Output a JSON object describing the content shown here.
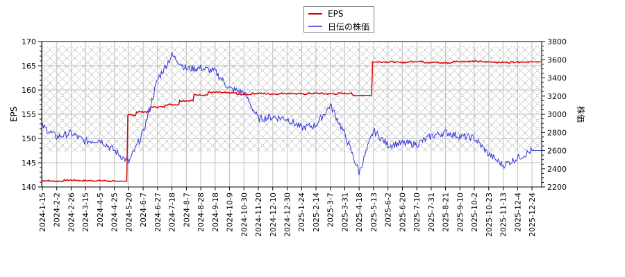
{
  "legend": {
    "items": [
      {
        "label": "EPS",
        "color": "#dd0000"
      },
      {
        "label": "日伝の株価",
        "color": "#3333dd"
      }
    ]
  },
  "axes": {
    "left_title": "EPS",
    "right_title": "株価",
    "left_ticks": [
      "140",
      "145",
      "150",
      "155",
      "160",
      "165",
      "170"
    ],
    "right_ticks": [
      "2200",
      "2400",
      "2600",
      "2800",
      "3000",
      "3200",
      "3400",
      "3600",
      "3800"
    ],
    "x_ticks": [
      "2024-1-15",
      "2024-2-2",
      "2024-2-26",
      "2024-3-15",
      "2024-4-5",
      "2024-4-25",
      "2024-5-20",
      "2024-6-7",
      "2024-6-27",
      "2024-7-18",
      "2024-8-7",
      "2024-8-28",
      "2024-9-18",
      "2024-10-9",
      "2024-10-30",
      "2024-11-20",
      "2024-12-10",
      "2024-12-30",
      "2025-1-24",
      "2025-2-14",
      "2025-3-7",
      "2025-3-31",
      "2025-4-18",
      "2025-5-13",
      "2025-6-2",
      "2025-6-20",
      "2025-7-10",
      "2025-7-31",
      "2025-8-21",
      "2025-9-10",
      "2025-10-2",
      "2025-10-23",
      "2025-11-13",
      "2025-12-4",
      "2025-12-24"
    ]
  },
  "chart_data": {
    "type": "line",
    "title": "",
    "xlabel": "",
    "ylabel": "EPS",
    "ylabel_right": "株価",
    "ylim": [
      140,
      170
    ],
    "ylim_right": [
      2200,
      3800
    ],
    "grid": true,
    "legend_position": "top-center",
    "hatched_band_right": [
      2580,
      3750
    ],
    "x": [
      "2024-1-15",
      "2024-2-2",
      "2024-2-26",
      "2024-3-15",
      "2024-4-5",
      "2024-4-25",
      "2024-5-20",
      "2024-6-7",
      "2024-6-27",
      "2024-7-18",
      "2024-8-7",
      "2024-8-28",
      "2024-9-18",
      "2024-10-9",
      "2024-10-30",
      "2024-11-20",
      "2024-12-10",
      "2024-12-30",
      "2025-1-24",
      "2025-2-14",
      "2025-3-7",
      "2025-3-31",
      "2025-4-18",
      "2025-5-13",
      "2025-6-2",
      "2025-6-20",
      "2025-7-10",
      "2025-7-31",
      "2025-8-21",
      "2025-9-10",
      "2025-10-2",
      "2025-10-23",
      "2025-11-13",
      "2025-12-4",
      "2025-12-24"
    ],
    "series": [
      {
        "name": "EPS",
        "axis": "left",
        "color": "#dd0000",
        "values": [
          141.3,
          141.2,
          141.4,
          141.3,
          141.3,
          141.2,
          154.8,
          155.5,
          156.5,
          157.0,
          157.8,
          159.0,
          159.5,
          159.4,
          159.1,
          159.3,
          159.2,
          159.3,
          159.2,
          159.3,
          159.2,
          159.3,
          158.9,
          165.8,
          165.8,
          165.7,
          165.9,
          165.7,
          165.6,
          165.9,
          165.9,
          165.8,
          165.7,
          165.8,
          165.8
        ]
      },
      {
        "name": "日伝の株価",
        "axis": "right",
        "color": "#3333dd",
        "values": [
          2870,
          2750,
          2790,
          2700,
          2720,
          2600,
          2470,
          2800,
          3380,
          3650,
          3500,
          3510,
          3470,
          3280,
          3240,
          2950,
          2970,
          2950,
          2850,
          2880,
          3100,
          2780,
          2360,
          2820,
          2660,
          2680,
          2670,
          2760,
          2800,
          2760,
          2740,
          2560,
          2440,
          2520,
          2600
        ]
      }
    ]
  }
}
